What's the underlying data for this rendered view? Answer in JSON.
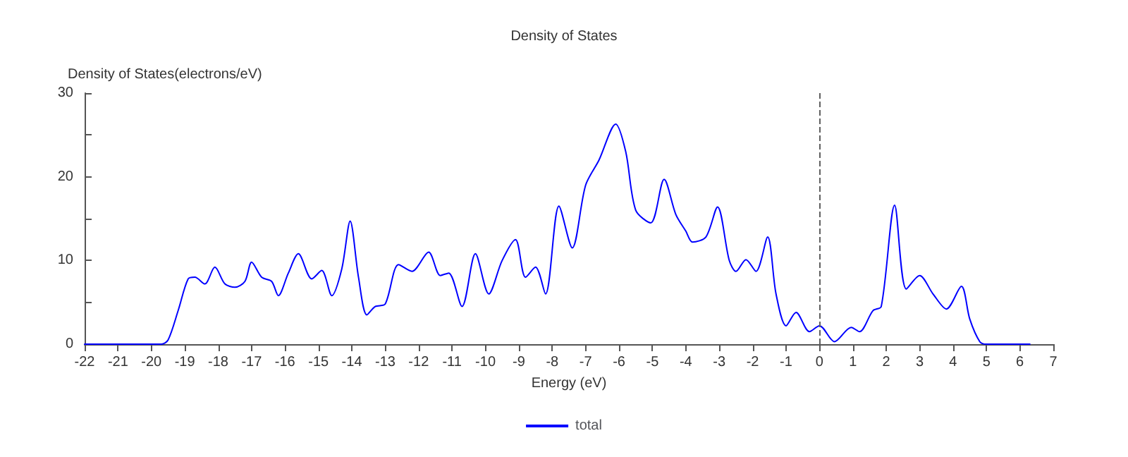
{
  "chart_data": {
    "type": "line",
    "title": "Density of States",
    "xlabel": "Energy (eV)",
    "ylabel": "Density of States(electrons/eV)",
    "xlim": [
      -22,
      7
    ],
    "xticks": [
      -22,
      -21,
      -20,
      -19,
      -18,
      -17,
      -16,
      -15,
      -14,
      -13,
      -12,
      -11,
      -10,
      -9,
      -8,
      -7,
      -6,
      -5,
      -4,
      -3,
      -2,
      -1,
      0,
      1,
      2,
      3,
      4,
      5,
      6,
      7
    ],
    "ylim": [
      0,
      30
    ],
    "yticks": [
      0,
      {
        "value": 5,
        "label": null
      },
      10,
      {
        "value": 15,
        "label": null
      },
      20,
      {
        "value": 25,
        "label": null
      },
      30
    ],
    "grid": false,
    "legend": "bottom",
    "marker": "none",
    "line_style": "solid",
    "ref_lines": [
      {
        "axis": "x",
        "value": 0,
        "label": null,
        "color": "#606060",
        "line_style": "dashed"
      }
    ],
    "x": [
      -22,
      -20,
      -19.7,
      -19.5,
      -19.2,
      -18.9,
      -18.7,
      -18.4,
      -18.1,
      -17.8,
      -17.5,
      -17.2,
      -17,
      -16.7,
      -16.4,
      -16.2,
      -15.9,
      -15.6,
      -15.2,
      -14.9,
      -14.6,
      -14.3,
      -14.05,
      -13.8,
      -13.55,
      -13.3,
      -13,
      -12.6,
      -12.2,
      -11.7,
      -11.35,
      -11.1,
      -10.7,
      -10.3,
      -9.9,
      -9.5,
      -9.1,
      -8.8,
      -8.5,
      -8.2,
      -7.8,
      -7.4,
      -7,
      -6.6,
      -6.1,
      -5.8,
      -5.5,
      -5.05,
      -4.65,
      -4.3,
      -4,
      -3.8,
      -3.4,
      -3.05,
      -2.7,
      -2.5,
      -2.2,
      -1.9,
      -1.55,
      -1.3,
      -1,
      -0.7,
      -0.3,
      0,
      0.45,
      0.95,
      1.2,
      1.6,
      1.85,
      2.25,
      2.6,
      3,
      3.4,
      3.8,
      4.25,
      4.5,
      4.8,
      5,
      6.3
    ],
    "series": [
      {
        "name": "total",
        "color": "#0000ff",
        "values": [
          0,
          0,
          0,
          0.5,
          4,
          7.8,
          8,
          7.2,
          9.2,
          7.2,
          6.8,
          7.5,
          9.8,
          8,
          7.5,
          5.8,
          8.5,
          10.8,
          7.8,
          8.8,
          5.8,
          9,
          14.7,
          8,
          3.5,
          4.5,
          4.8,
          9.5,
          8.7,
          11,
          8.2,
          8.5,
          4.5,
          10.8,
          6,
          10,
          12.5,
          8,
          9.2,
          6,
          16.5,
          11.5,
          19,
          22,
          26.3,
          23,
          16,
          14.5,
          19.7,
          15.5,
          13.5,
          12.2,
          12.8,
          16.4,
          10,
          8.7,
          10.1,
          8.7,
          12.8,
          6,
          2.2,
          3.8,
          1.5,
          2.2,
          0.3,
          2,
          1.5,
          4,
          4.5,
          16.6,
          6.6,
          8.2,
          6,
          4.2,
          6.9,
          3,
          0.3,
          0,
          0
        ]
      }
    ]
  }
}
